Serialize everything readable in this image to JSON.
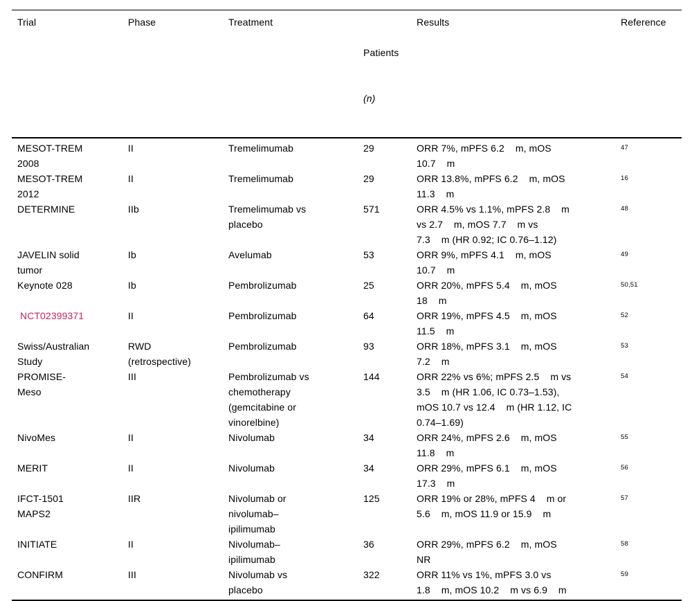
{
  "colors": {
    "text": "#000000",
    "rule": "#000000",
    "link_red": "#c62458"
  },
  "table": {
    "headers": {
      "trial": "Trial",
      "phase": "Phase",
      "treatment": "Treatment",
      "patients_line1": "Patients",
      "patients_line2": "(n)",
      "results": "Results",
      "reference": "Reference"
    },
    "rows": [
      {
        "trial": "MESOT-TREM\n2008",
        "phase": "II",
        "treatment": "Tremelimumab",
        "patients": "29",
        "results": "ORR 7%, mPFS 6.2    m, mOS\n10.7    m",
        "reference": "47"
      },
      {
        "trial": "MESOT-TREM\n2012",
        "phase": "II",
        "treatment": "Tremelimumab",
        "patients": "29",
        "results": "ORR 13.8%, mPFS 6.2    m, mOS\n11.3    m",
        "reference": "16"
      },
      {
        "trial": "DETERMINE",
        "phase": "IIb",
        "treatment": "Tremelimumab vs\nplacebo",
        "patients": "571",
        "results": "ORR 4.5% vs 1.1%, mPFS 2.8    m\nvs 2.7    m, mOS 7.7    m vs\n7.3    m (HR 0.92; IC 0.76–1.12)",
        "reference": "48"
      },
      {
        "trial": "JAVELIN solid\ntumor",
        "phase": "Ib",
        "treatment": "Avelumab",
        "patients": "53",
        "results": "ORR 9%, mPFS 4.1    m, mOS\n10.7    m",
        "reference": "49"
      },
      {
        "trial": "Keynote 028",
        "phase": "Ib",
        "treatment": "Pembrolizumab",
        "patients": "25",
        "results": "ORR 20%, mPFS 5.4    m, mOS\n18    m",
        "reference": "50,51"
      },
      {
        "trial": " NCT02399371",
        "phase": "II",
        "treatment": "Pembrolizumab",
        "patients": "64",
        "results": "ORR 19%, mPFS 4.5    m, mOS\n11.5    m",
        "reference": "52",
        "trial_is_link": true
      },
      {
        "trial": "Swiss/Australian\nStudy",
        "phase": "RWD\n(retrospective)",
        "treatment": "Pembrolizumab",
        "patients": "93",
        "results": "ORR 18%, mPFS 3.1    m, mOS\n7.2    m",
        "reference": "53"
      },
      {
        "trial": "PROMISE-\nMeso",
        "phase": "III",
        "treatment": "Pembrolizumab vs\nchemotherapy\n(gemcitabine or\nvinorelbine)",
        "patients": "144",
        "results": "ORR 22% vs 6%; mPFS 2.5    m vs\n3.5    m (HR 1.06, IC 0.73–1.53),\nmOS 10.7 vs 12.4    m (HR 1.12, IC\n0.74–1.69)",
        "reference": "54"
      },
      {
        "trial": "NivoMes",
        "phase": "II",
        "treatment": "Nivolumab",
        "patients": "34",
        "results": "ORR 24%, mPFS 2.6    m, mOS\n11.8    m",
        "reference": "55"
      },
      {
        "trial": "MERIT",
        "phase": "II",
        "treatment": "Nivolumab",
        "patients": "34",
        "results": "ORR 29%, mPFS 6.1    m, mOS\n17.3    m",
        "reference": "56"
      },
      {
        "trial": "IFCT-1501\nMAPS2",
        "phase": "IIR",
        "treatment": "Nivolumab or\nnivolumab–\nipilimumab",
        "patients": "125",
        "results": "ORR 19% or 28%, mPFS 4    m or\n5.6    m, mOS 11.9 or 15.9    m",
        "reference": "57"
      },
      {
        "trial": "INITIATE",
        "phase": "II",
        "treatment": "Nivolumab–\nipilimumab",
        "patients": "36",
        "results": "ORR 29%, mPFS 6.2    m, mOS\nNR",
        "reference": "58"
      },
      {
        "trial": "CONFIRM",
        "phase": "III",
        "treatment": "Nivolumab vs\nplacebo",
        "patients": "322",
        "results": "ORR 11% vs 1%, mPFS 3.0 vs\n1.8    m, mOS 10.2    m vs 6.9    m",
        "reference": "59"
      }
    ]
  }
}
